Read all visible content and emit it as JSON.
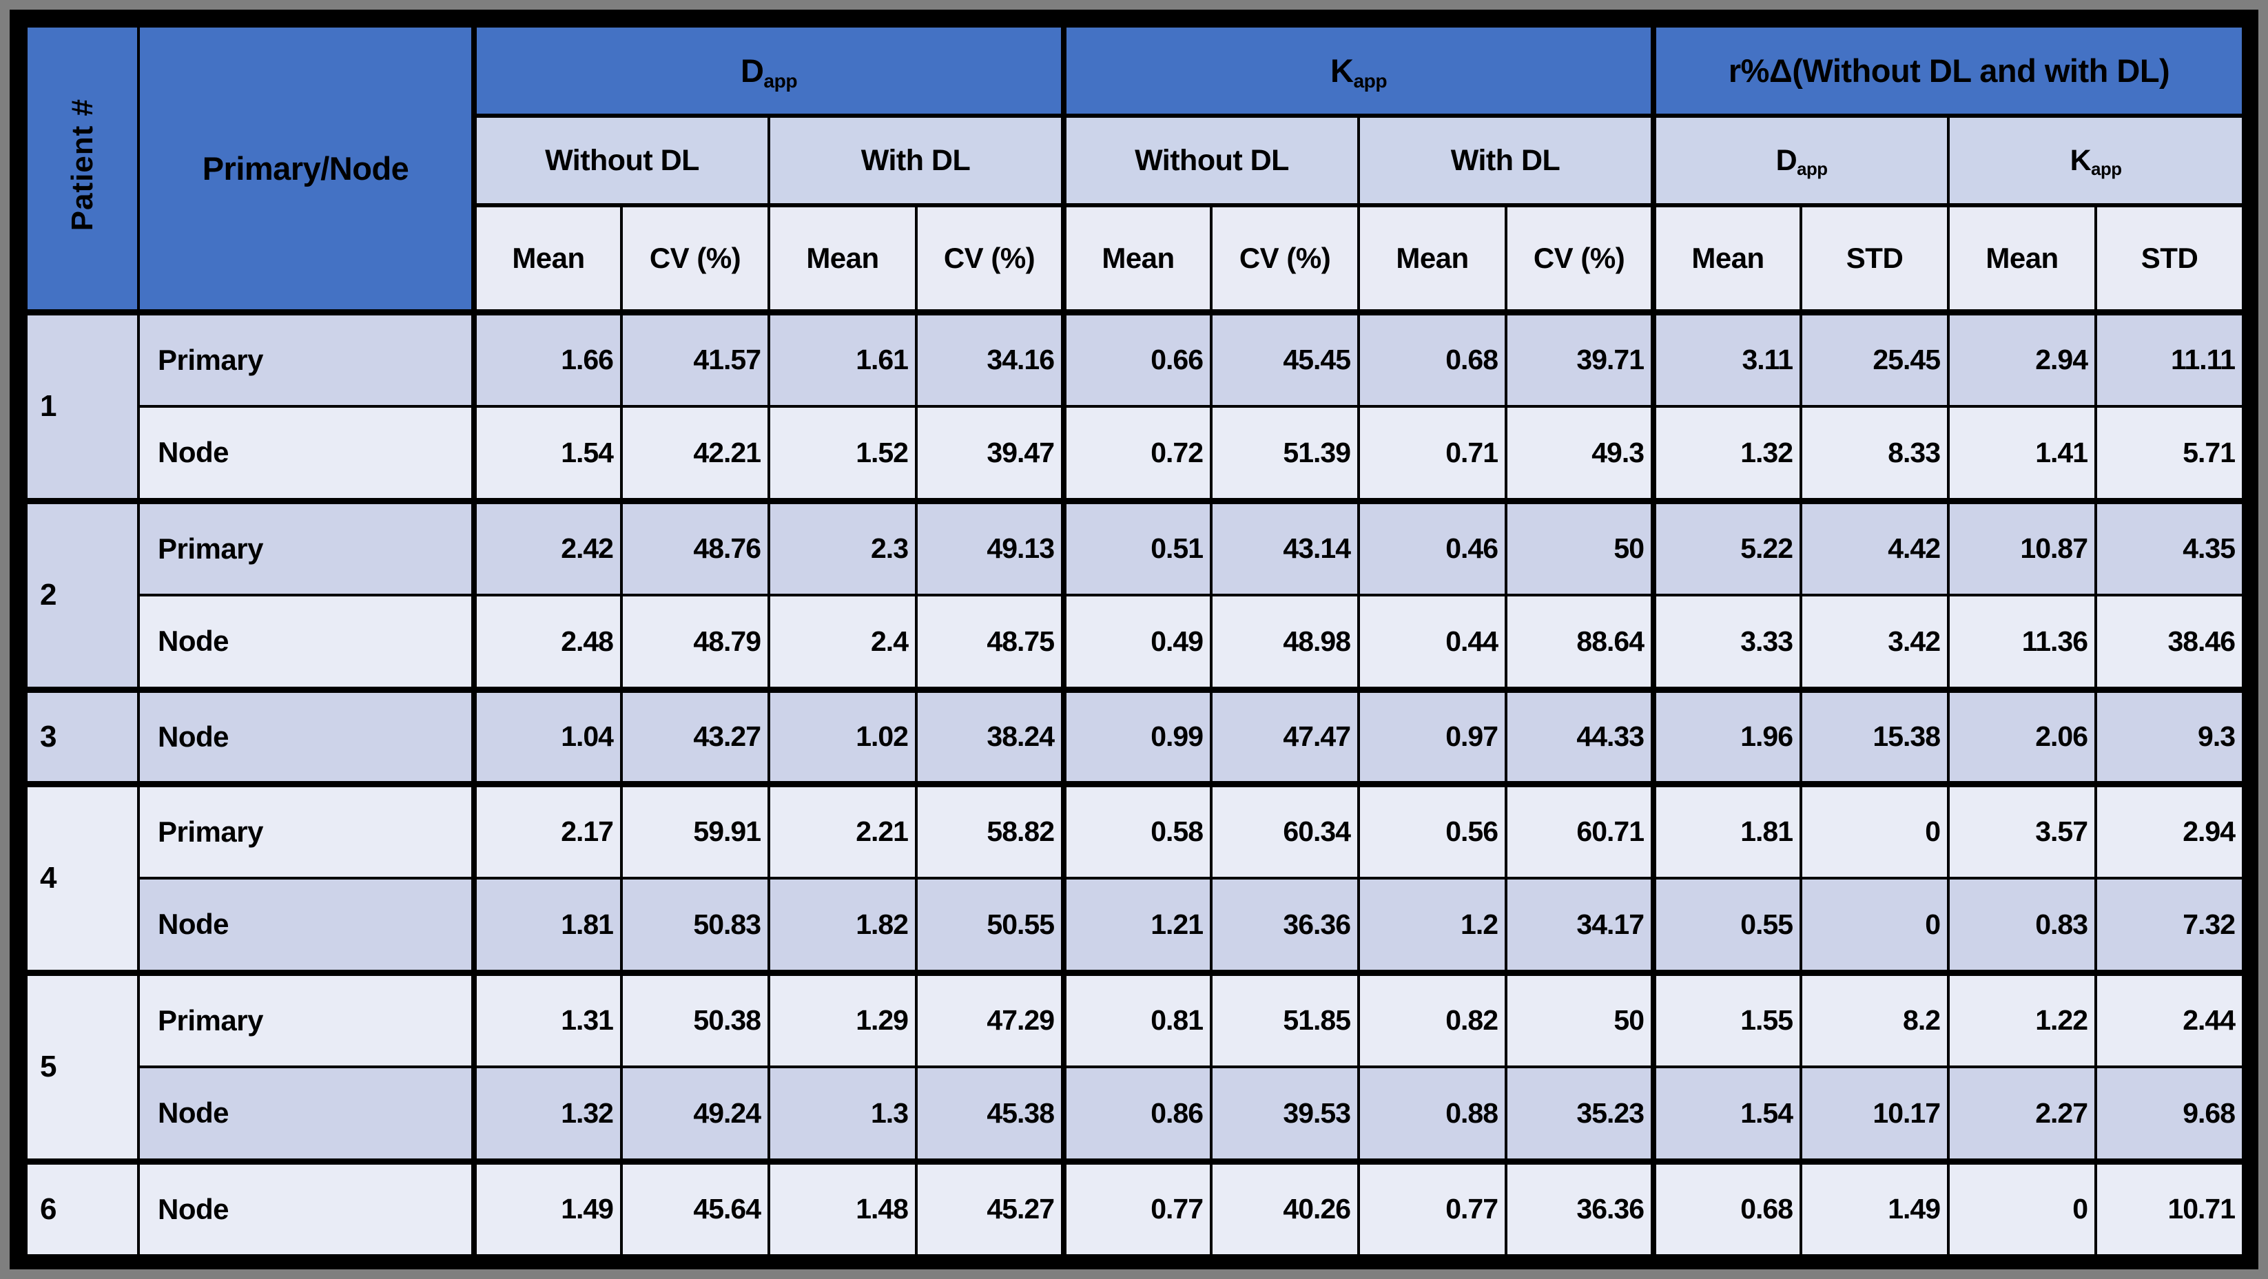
{
  "colors": {
    "header_blue": "#4472c4",
    "band_dark": "#cdd3e9",
    "band_light": "#e9ecf6",
    "border_black": "#000000",
    "frame_gray": "#7f7f7f"
  },
  "header": {
    "patient": "Patient #",
    "primary_node": "Primary/Node",
    "d_base": "D",
    "k_base": "K",
    "app_sub": "app",
    "rdelta": "r%Δ(Without DL and with DL)",
    "without_dl": "Without DL",
    "with_dl": "With DL",
    "mean": "Mean",
    "cv": "CV (%)",
    "std": "STD"
  },
  "columns_order": [
    "Dapp Without DL Mean",
    "Dapp Without DL CV (%)",
    "Dapp With DL Mean",
    "Dapp With DL CV (%)",
    "Kapp Without DL Mean",
    "Kapp Without DL CV (%)",
    "Kapp With DL Mean",
    "Kapp With DL CV (%)",
    "r%Δ Dapp Mean",
    "r%Δ Dapp STD",
    "r%Δ Kapp Mean",
    "r%Δ Kapp STD"
  ],
  "patients": [
    {
      "patient": "1",
      "rows": [
        {
          "label": "Primary",
          "values": [
            "1.66",
            "41.57",
            "1.61",
            "34.16",
            "0.66",
            "45.45",
            "0.68",
            "39.71",
            "3.11",
            "25.45",
            "2.94",
            "11.11"
          ]
        },
        {
          "label": "Node",
          "values": [
            "1.54",
            "42.21",
            "1.52",
            "39.47",
            "0.72",
            "51.39",
            "0.71",
            "49.3",
            "1.32",
            "8.33",
            "1.41",
            "5.71"
          ]
        }
      ]
    },
    {
      "patient": "2",
      "rows": [
        {
          "label": "Primary",
          "values": [
            "2.42",
            "48.76",
            "2.3",
            "49.13",
            "0.51",
            "43.14",
            "0.46",
            "50",
            "5.22",
            "4.42",
            "10.87",
            "4.35"
          ]
        },
        {
          "label": "Node",
          "values": [
            "2.48",
            "48.79",
            "2.4",
            "48.75",
            "0.49",
            "48.98",
            "0.44",
            "88.64",
            "3.33",
            "3.42",
            "11.36",
            "38.46"
          ]
        }
      ]
    },
    {
      "patient": "3",
      "rows": [
        {
          "label": "Node",
          "values": [
            "1.04",
            "43.27",
            "1.02",
            "38.24",
            "0.99",
            "47.47",
            "0.97",
            "44.33",
            "1.96",
            "15.38",
            "2.06",
            "9.3"
          ]
        }
      ]
    },
    {
      "patient": "4",
      "rows": [
        {
          "label": "Primary",
          "values": [
            "2.17",
            "59.91",
            "2.21",
            "58.82",
            "0.58",
            "60.34",
            "0.56",
            "60.71",
            "1.81",
            "0",
            "3.57",
            "2.94"
          ]
        },
        {
          "label": "Node",
          "values": [
            "1.81",
            "50.83",
            "1.82",
            "50.55",
            "1.21",
            "36.36",
            "1.2",
            "34.17",
            "0.55",
            "0",
            "0.83",
            "7.32"
          ]
        }
      ]
    },
    {
      "patient": "5",
      "rows": [
        {
          "label": "Primary",
          "values": [
            "1.31",
            "50.38",
            "1.29",
            "47.29",
            "0.81",
            "51.85",
            "0.82",
            "50",
            "1.55",
            "8.2",
            "1.22",
            "2.44"
          ]
        },
        {
          "label": "Node",
          "values": [
            "1.32",
            "49.24",
            "1.3",
            "45.38",
            "0.86",
            "39.53",
            "0.88",
            "35.23",
            "1.54",
            "10.17",
            "2.27",
            "9.68"
          ]
        }
      ]
    },
    {
      "patient": "6",
      "rows": [
        {
          "label": "Node",
          "values": [
            "1.49",
            "45.64",
            "1.48",
            "45.27",
            "0.77",
            "40.26",
            "0.77",
            "36.36",
            "0.68",
            "1.49",
            "0",
            "10.71"
          ]
        }
      ]
    }
  ]
}
